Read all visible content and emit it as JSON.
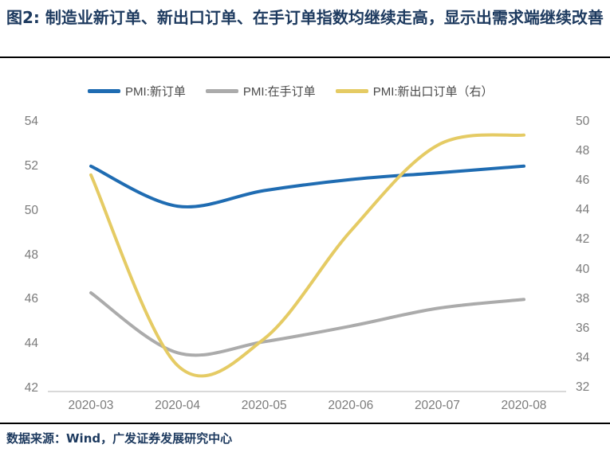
{
  "title": "图2:  制造业新订单、新出口订单、在手订单指数均继续走高，显示出需求端继续改善",
  "source": "数据来源：Wind，广发证券发展研究中心",
  "colors": {
    "title_navy": "#1d3a5f",
    "new_orders_blue": "#1f6cb2",
    "backlog_gray": "#ababab",
    "export_yellow": "#e5cb64",
    "axis_text": "#7b7b7b",
    "axis_line": "#d9d9d9",
    "rule_black": "#000000"
  },
  "legend": {
    "items": [
      {
        "label": "PMI:新订单",
        "color": "#1f6cb2"
      },
      {
        "label": "PMI:在手订单",
        "color": "#ababab"
      },
      {
        "label": "PMI:新出口订单（右）",
        "color": "#e5cb64"
      }
    ]
  },
  "chart_data": {
    "type": "line",
    "smooth": true,
    "grid": false,
    "legend_position": "top",
    "x": [
      "2020-03",
      "2020-04",
      "2020-05",
      "2020-06",
      "2020-07",
      "2020-08"
    ],
    "series": [
      {
        "name": "PMI:新订单",
        "axis": "left",
        "color": "#1f6cb2",
        "values": [
          52.0,
          50.2,
          50.9,
          51.4,
          51.7,
          52.0
        ]
      },
      {
        "name": "PMI:在手订单",
        "axis": "left",
        "color": "#ababab",
        "values": [
          46.3,
          43.6,
          44.1,
          44.8,
          45.6,
          46.0
        ]
      },
      {
        "name": "PMI:新出口订单（右）",
        "axis": "right",
        "color": "#e5cb64",
        "values": [
          46.4,
          33.5,
          35.3,
          42.6,
          48.4,
          49.1
        ]
      }
    ],
    "left_axis": {
      "label": "",
      "min": 42,
      "max": 54,
      "step": 2,
      "ticks": [
        54,
        52,
        50,
        48,
        46,
        44,
        42
      ]
    },
    "right_axis": {
      "label": "",
      "min": 32,
      "max": 50,
      "step": 2,
      "ticks": [
        50,
        48,
        46,
        44,
        42,
        40,
        38,
        36,
        34,
        32
      ]
    }
  }
}
